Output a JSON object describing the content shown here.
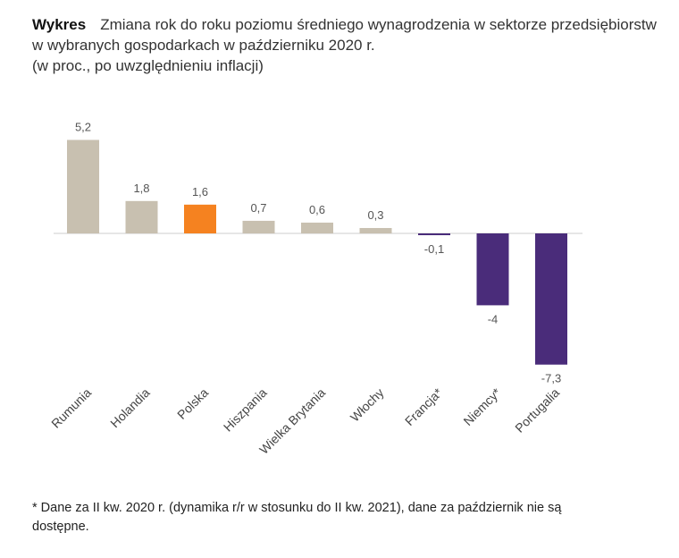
{
  "header": {
    "label": "Wykres",
    "title": "Zmiana rok do roku poziomu średniego wynagrodzenia w sektorze przedsiębiorstw w wybranych gospodarkach w październiku 2020 r.",
    "subtitle": "(w proc., po uwzględnieniu inflacji)"
  },
  "footnote": "* Dane za II kw. 2020 r. (dynamika r/r w stosunku do II kw. 2021), dane za październik nie są dostępne.",
  "colors": {
    "neutral": "#c8c0b0",
    "highlight": "#f58220",
    "negative": "#4a2c7a",
    "baseline": "#dddddd"
  },
  "chart_data": {
    "type": "bar",
    "title": "Zmiana rok do roku poziomu średniego wynagrodzenia w sektorze przedsiębiorstw w wybranych gospodarkach w październiku 2020 r.",
    "categories": [
      "Rumunia",
      "Holandia",
      "Polska",
      "Hiszpania",
      "Wielka Brytania",
      "Włochy",
      "Francja*",
      "Niemcy*",
      "Portugalia"
    ],
    "values": [
      5.2,
      1.8,
      1.6,
      0.7,
      0.6,
      0.3,
      -0.1,
      -4,
      -7.3
    ],
    "value_labels": [
      "5,2",
      "1,8",
      "1,6",
      "0,7",
      "0,6",
      "0,3",
      "-0,1",
      "-4",
      "-7,3"
    ],
    "highlight": "Polska",
    "ylim": [
      -7.3,
      5.2
    ],
    "grid": false,
    "legend": "none"
  }
}
